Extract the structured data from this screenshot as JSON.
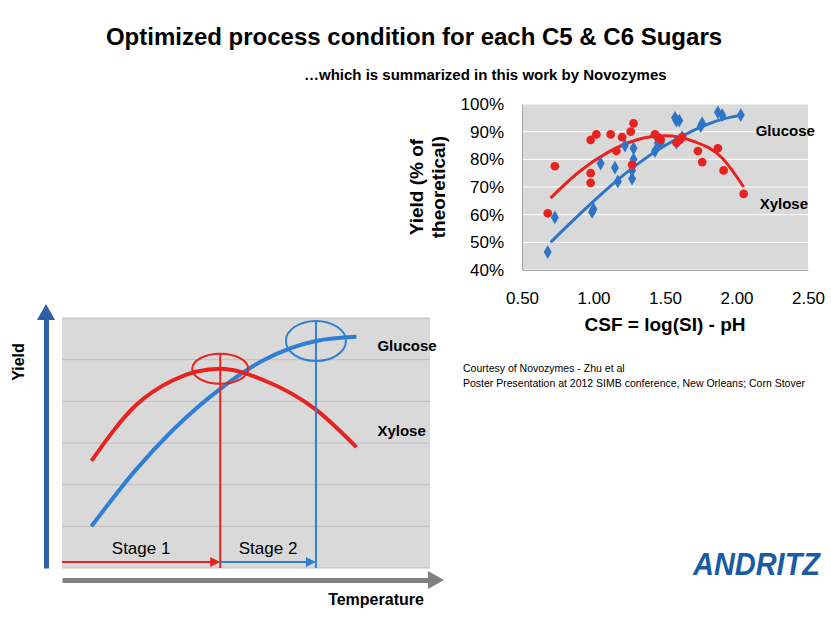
{
  "page": {
    "title": "Optimized process condition for each C5 & C6 Sugars",
    "subtitle": "…which is summarized in this work by Novozymes",
    "notes": [
      "Courtesy of Novozymes - Zhu et al",
      "Poster Presentation at 2012 SIMB conference, New Orleans;  Corn Stover"
    ],
    "logo": "ANDRITZ"
  },
  "chart_data": [
    {
      "type": "scatter",
      "x_label": "CSF = log(SI) - pH",
      "y_label": [
        "Yield (% of",
        "theoretical)"
      ],
      "xlim": [
        0.5,
        2.5
      ],
      "ylim": [
        40,
        100
      ],
      "xticks": [
        {
          "value": 0.5,
          "label": "0.50"
        },
        {
          "value": 1,
          "label": "1.00"
        },
        {
          "value": 1.5,
          "label": "1.50"
        },
        {
          "value": 2,
          "label": "2.00"
        },
        {
          "value": 2.5,
          "label": "2.50"
        }
      ],
      "yticks": [
        {
          "value": 40,
          "label": "40%"
        },
        {
          "value": 50,
          "label": "50%"
        },
        {
          "value": 60,
          "label": "60%"
        },
        {
          "value": 70,
          "label": "70%"
        },
        {
          "value": 80,
          "label": "80%"
        },
        {
          "value": 90,
          "label": "90%"
        },
        {
          "value": 100,
          "label": "100%"
        }
      ],
      "grid": "y",
      "series": [
        {
          "name": "Glucose",
          "color": "#2e75c8",
          "marker": "diamond",
          "x": [
            0.68,
            0.73,
            0.99,
            1.0,
            1.05,
            1.15,
            1.17,
            1.22,
            1.27,
            1.27,
            1.28,
            1.28,
            1.43,
            1.45,
            1.47,
            1.57,
            1.58,
            1.58,
            1.6,
            1.62,
            1.75,
            1.76,
            1.87,
            1.9,
            2.03
          ],
          "values": [
            46.5,
            59,
            61,
            62,
            78.5,
            77,
            72,
            85,
            73,
            76,
            84,
            80,
            83,
            86,
            86,
            95,
            94,
            86,
            94,
            88,
            92,
            93,
            97,
            96,
            96
          ],
          "trend": {
            "x": [
              0.7,
              0.9,
              1.1,
              1.3,
              1.5,
              1.7,
              1.9,
              2.05
            ],
            "values": [
              50,
              60,
              69.5,
              78,
              85,
              90.5,
              94.5,
              96
            ]
          }
        },
        {
          "name": "Xylose",
          "color": "#e8231f",
          "marker": "circle",
          "x": [
            0.68,
            0.73,
            0.98,
            0.98,
            0.98,
            1.02,
            1.12,
            1.16,
            1.2,
            1.26,
            1.27,
            1.28,
            1.43,
            1.45,
            1.47,
            1.58,
            1.6,
            1.62,
            1.73,
            1.76,
            1.87,
            1.91,
            2.05
          ],
          "values": [
            60.5,
            77.5,
            71.5,
            75,
            87,
            89,
            89,
            83,
            88,
            90,
            78,
            93,
            89,
            88,
            87,
            86,
            87,
            88,
            83,
            79,
            84,
            76,
            67.5
          ],
          "trend": {
            "x": [
              0.7,
              0.9,
              1.1,
              1.3,
              1.5,
              1.7,
              1.9,
              2.05
            ],
            "values": [
              66,
              75.5,
              82.5,
              87,
              88.5,
              86.5,
              80.5,
              70
            ]
          }
        }
      ]
    },
    {
      "type": "line",
      "x_label": "Temperature",
      "y_label": "Yield",
      "xlim": [
        0,
        10
      ],
      "ylim": [
        0,
        6
      ],
      "xticks": [],
      "yticks": [
        0,
        1,
        2,
        3,
        4,
        5,
        6
      ],
      "grid": "y",
      "tick_labels": false,
      "series": [
        {
          "name": "Glucose",
          "color": "#2f7fd3",
          "x": [
            0.8,
            2,
            3,
            4.3,
            5.5,
            6.9,
            8
          ],
          "values": [
            1.0,
            2.35,
            3.3,
            4.3,
            5.0,
            5.45,
            5.55
          ]
        },
        {
          "name": "Xylose",
          "color": "#e8231f",
          "x": [
            0.8,
            2,
            3,
            4.3,
            5.5,
            6.9,
            8
          ],
          "values": [
            2.57,
            3.9,
            4.5,
            4.78,
            4.5,
            3.8,
            2.9
          ]
        }
      ],
      "stages": [
        {
          "label": "Stage 1",
          "x": 4.3,
          "series": "Xylose"
        },
        {
          "label": "Stage 2",
          "x": 6.9,
          "series": "Glucose"
        }
      ]
    }
  ]
}
